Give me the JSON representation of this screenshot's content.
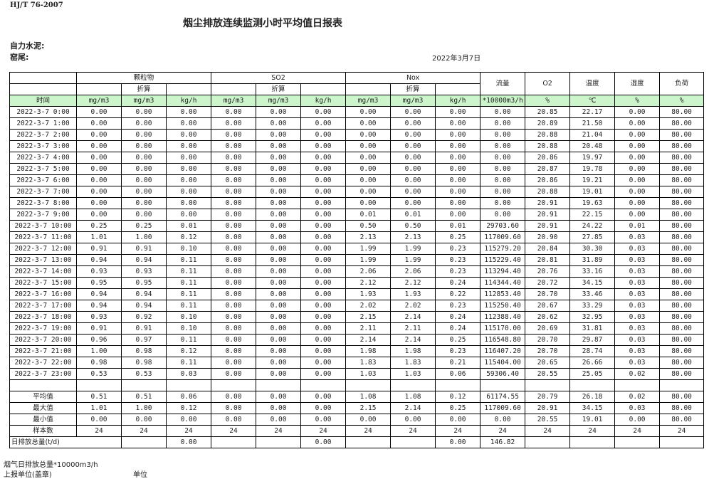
{
  "header": {
    "standard": "HJ/T  76-2007",
    "title": "烟尘排放连续监测小时平均值日报表",
    "company": "自力水泥:",
    "kiln": "窑尾:",
    "date": "2022年3月7日"
  },
  "table": {
    "groups": {
      "pm": "颗粒物",
      "so2": "SO2",
      "nox": "Nox",
      "flow": "流量",
      "o2": "O2",
      "temp": "温度",
      "humidity": "湿度",
      "load": "负荷",
      "converted": "折算"
    },
    "units": [
      "时间",
      "mg/m3",
      "mg/m3",
      "kg/h",
      "mg/m3",
      "mg/m3",
      "kg/h",
      "mg/m3",
      "mg/m3",
      "kg/h",
      "*10000m3/h",
      "%",
      "℃",
      "%",
      "%"
    ],
    "rows": [
      [
        "2022-3-7 0:00",
        "0.00",
        "0.00",
        "0.00",
        "0.00",
        "0.00",
        "0.00",
        "0.00",
        "0.00",
        "0.00",
        "0.00",
        "20.85",
        "22.17",
        "0.00",
        "80.00"
      ],
      [
        "2022-3-7 1:00",
        "0.00",
        "0.00",
        "0.00",
        "0.00",
        "0.00",
        "0.00",
        "0.00",
        "0.00",
        "0.00",
        "0.00",
        "20.89",
        "21.50",
        "0.00",
        "80.00"
      ],
      [
        "2022-3-7 2:00",
        "0.00",
        "0.00",
        "0.00",
        "0.00",
        "0.00",
        "0.00",
        "0.00",
        "0.00",
        "0.00",
        "0.00",
        "20.88",
        "21.04",
        "0.00",
        "80.00"
      ],
      [
        "2022-3-7 3:00",
        "0.00",
        "0.00",
        "0.00",
        "0.00",
        "0.00",
        "0.00",
        "0.00",
        "0.00",
        "0.00",
        "0.00",
        "20.88",
        "20.48",
        "0.00",
        "80.00"
      ],
      [
        "2022-3-7 4:00",
        "0.00",
        "0.00",
        "0.00",
        "0.00",
        "0.00",
        "0.00",
        "0.00",
        "0.00",
        "0.00",
        "0.00",
        "20.86",
        "19.97",
        "0.00",
        "80.00"
      ],
      [
        "2022-3-7 5:00",
        "0.00",
        "0.00",
        "0.00",
        "0.00",
        "0.00",
        "0.00",
        "0.00",
        "0.00",
        "0.00",
        "0.00",
        "20.87",
        "19.78",
        "0.00",
        "80.00"
      ],
      [
        "2022-3-7 6:00",
        "0.00",
        "0.00",
        "0.00",
        "0.00",
        "0.00",
        "0.00",
        "0.00",
        "0.00",
        "0.00",
        "0.00",
        "20.86",
        "19.21",
        "0.00",
        "80.00"
      ],
      [
        "2022-3-7 7:00",
        "0.00",
        "0.00",
        "0.00",
        "0.00",
        "0.00",
        "0.00",
        "0.00",
        "0.00",
        "0.00",
        "0.00",
        "20.88",
        "19.01",
        "0.00",
        "80.00"
      ],
      [
        "2022-3-7 8:00",
        "0.00",
        "0.00",
        "0.00",
        "0.00",
        "0.00",
        "0.00",
        "0.00",
        "0.00",
        "0.00",
        "0.00",
        "20.91",
        "19.63",
        "0.00",
        "80.00"
      ],
      [
        "2022-3-7 9:00",
        "0.00",
        "0.00",
        "0.00",
        "0.00",
        "0.00",
        "0.00",
        "0.01",
        "0.01",
        "0.00",
        "0.00",
        "20.91",
        "22.15",
        "0.00",
        "80.00"
      ],
      [
        "2022-3-7 10:00",
        "0.25",
        "0.25",
        "0.01",
        "0.00",
        "0.00",
        "0.00",
        "0.50",
        "0.50",
        "0.01",
        "29703.60",
        "20.91",
        "24.22",
        "0.01",
        "80.00"
      ],
      [
        "2022-3-7 11:00",
        "1.01",
        "1.00",
        "0.12",
        "0.00",
        "0.00",
        "0.00",
        "2.13",
        "2.13",
        "0.25",
        "117009.60",
        "20.90",
        "27.85",
        "0.03",
        "80.00"
      ],
      [
        "2022-3-7 12:00",
        "0.91",
        "0.91",
        "0.10",
        "0.00",
        "0.00",
        "0.00",
        "1.99",
        "1.99",
        "0.23",
        "115279.20",
        "20.84",
        "30.30",
        "0.03",
        "80.00"
      ],
      [
        "2022-3-7 13:00",
        "0.94",
        "0.94",
        "0.11",
        "0.00",
        "0.00",
        "0.00",
        "1.99",
        "1.99",
        "0.23",
        "115229.40",
        "20.81",
        "31.89",
        "0.03",
        "80.00"
      ],
      [
        "2022-3-7 14:00",
        "0.93",
        "0.93",
        "0.11",
        "0.00",
        "0.00",
        "0.00",
        "2.06",
        "2.06",
        "0.23",
        "113294.40",
        "20.76",
        "33.16",
        "0.03",
        "80.00"
      ],
      [
        "2022-3-7 15:00",
        "0.95",
        "0.95",
        "0.11",
        "0.00",
        "0.00",
        "0.00",
        "2.12",
        "2.12",
        "0.24",
        "114344.40",
        "20.72",
        "34.15",
        "0.03",
        "80.00"
      ],
      [
        "2022-3-7 16:00",
        "0.94",
        "0.94",
        "0.11",
        "0.00",
        "0.00",
        "0.00",
        "1.93",
        "1.93",
        "0.22",
        "112853.40",
        "20.70",
        "33.46",
        "0.03",
        "80.00"
      ],
      [
        "2022-3-7 17:00",
        "0.94",
        "0.94",
        "0.11",
        "0.00",
        "0.00",
        "0.00",
        "2.02",
        "2.02",
        "0.23",
        "115250.40",
        "20.67",
        "33.29",
        "0.03",
        "80.00"
      ],
      [
        "2022-3-7 18:00",
        "0.93",
        "0.92",
        "0.10",
        "0.00",
        "0.00",
        "0.00",
        "2.15",
        "2.14",
        "0.24",
        "112388.40",
        "20.62",
        "32.95",
        "0.03",
        "80.00"
      ],
      [
        "2022-3-7 19:00",
        "0.91",
        "0.91",
        "0.10",
        "0.00",
        "0.00",
        "0.00",
        "2.11",
        "2.11",
        "0.24",
        "115170.00",
        "20.69",
        "31.81",
        "0.03",
        "80.00"
      ],
      [
        "2022-3-7 20:00",
        "0.96",
        "0.97",
        "0.11",
        "0.00",
        "0.00",
        "0.00",
        "2.14",
        "2.14",
        "0.25",
        "116548.80",
        "20.70",
        "29.87",
        "0.03",
        "80.00"
      ],
      [
        "2022-3-7 21:00",
        "1.00",
        "0.98",
        "0.12",
        "0.00",
        "0.00",
        "0.00",
        "1.98",
        "1.98",
        "0.23",
        "116407.20",
        "20.70",
        "28.74",
        "0.03",
        "80.00"
      ],
      [
        "2022-3-7 22:00",
        "0.98",
        "0.98",
        "0.11",
        "0.00",
        "0.00",
        "0.00",
        "1.83",
        "1.83",
        "0.21",
        "115404.00",
        "20.65",
        "26.66",
        "0.03",
        "80.00"
      ],
      [
        "2022-3-7 23:00",
        "0.53",
        "0.53",
        "0.03",
        "0.00",
        "0.00",
        "0.00",
        "1.03",
        "1.03",
        "0.06",
        "59306.40",
        "20.55",
        "25.05",
        "0.02",
        "80.00"
      ]
    ],
    "stats": [
      [
        "平均值",
        "0.51",
        "0.51",
        "0.06",
        "0.00",
        "0.00",
        "0.00",
        "1.08",
        "1.08",
        "0.12",
        "61174.55",
        "20.79",
        "26.18",
        "0.02",
        "80.00"
      ],
      [
        "最大值",
        "1.01",
        "1.00",
        "0.12",
        "0.00",
        "0.00",
        "0.00",
        "2.15",
        "2.14",
        "0.25",
        "117009.60",
        "20.91",
        "34.15",
        "0.03",
        "80.00"
      ],
      [
        "最小值",
        "0.00",
        "0.00",
        "0.00",
        "0.00",
        "0.00",
        "0.00",
        "0.00",
        "0.00",
        "0.00",
        "0.00",
        "20.55",
        "19.01",
        "0.00",
        "80.00"
      ],
      [
        "样本数",
        "24",
        "24",
        "24",
        "24",
        "24",
        "24",
        "24",
        "24",
        "24",
        "24",
        "24",
        "24",
        "24",
        "24"
      ]
    ],
    "total": [
      "日排放总量(t/d)",
      "",
      "0.00",
      "",
      "",
      "0.00",
      "",
      "",
      "0.00",
      "146.82",
      "",
      "",
      "",
      ""
    ]
  },
  "footer": {
    "flue_total": "烟气日排放总量*10000m3/h",
    "reporter": "上报单位(盖章)",
    "unit": "单位"
  }
}
